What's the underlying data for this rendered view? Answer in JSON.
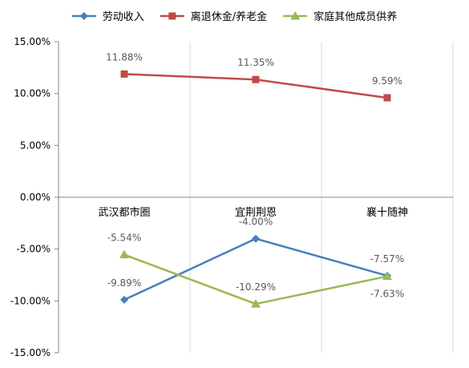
{
  "chart_data": {
    "type": "line",
    "categories": [
      "武汉都市圈",
      "宜荆荆恩",
      "襄十随神"
    ],
    "series": [
      {
        "name": "劳动收入",
        "values": [
          -9.89,
          -4.0,
          -7.57
        ],
        "labels": [
          "-9.89%",
          "-4.00%",
          "-7.57%"
        ],
        "color": "#4a7ebb",
        "marker": "diamond"
      },
      {
        "name": "离退休金/养老金",
        "values": [
          11.88,
          11.35,
          9.59
        ],
        "labels": [
          "11.88%",
          "11.35%",
          "9.59%"
        ],
        "color": "#be4b48",
        "marker": "square"
      },
      {
        "name": "家庭其他成员供养",
        "values": [
          -5.54,
          -10.29,
          -7.63
        ],
        "labels": [
          "-5.54%",
          "-10.29%",
          "-7.63%"
        ],
        "color": "#98b954",
        "marker": "triangle"
      }
    ],
    "yticks": [
      "15.00%",
      "10.00%",
      "5.00%",
      "0.00%",
      "-5.00%",
      "-10.00%",
      "-15.00%"
    ],
    "ylim": [
      -15,
      15
    ],
    "grid": "vertical",
    "legend": "top"
  }
}
